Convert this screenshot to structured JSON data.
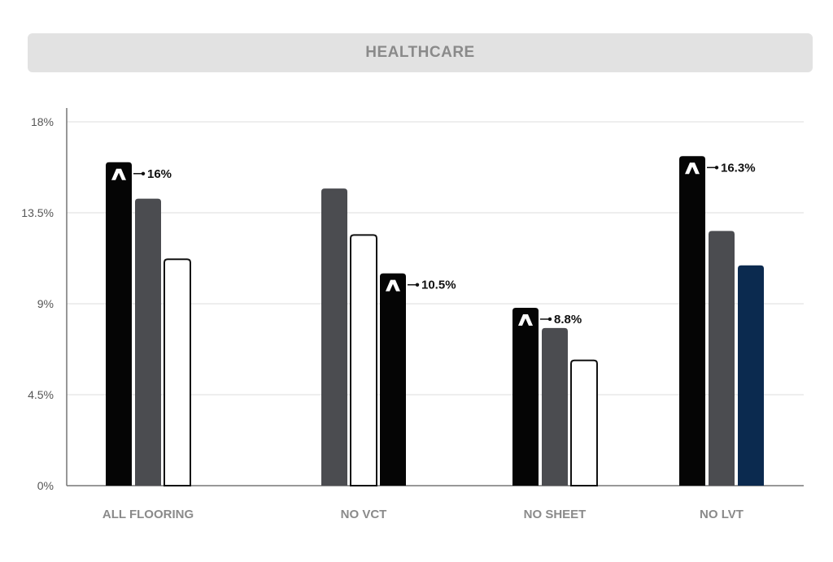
{
  "title": "HEALTHCARE",
  "colors": {
    "black": "#050505",
    "gray": "#4b4c50",
    "white": "#ffffff",
    "navy": "#0b2a4f",
    "title_bg": "#e2e2e2",
    "title_text": "#8a8a8a",
    "axis": "#777777",
    "grid": "#dcdcdc"
  },
  "chart_data": {
    "type": "bar",
    "title": "HEALTHCARE",
    "ylim": [
      0,
      18
    ],
    "yticks": [
      0,
      4.5,
      9,
      13.5,
      18
    ],
    "ytick_labels": [
      "0%",
      "4.5%",
      "9%",
      "13.5%",
      "18%"
    ],
    "grid": true,
    "categories": [
      "ALL FLOORING",
      "NO VCT",
      "NO SHEET",
      "NO LVT"
    ],
    "groups": [
      {
        "category": "ALL FLOORING",
        "bars": [
          {
            "value": 16,
            "color": "black",
            "highlight": true,
            "label": "16%"
          },
          {
            "value": 14.2,
            "color": "gray"
          },
          {
            "value": 11.2,
            "color": "white"
          }
        ]
      },
      {
        "category": "NO VCT",
        "bars": [
          {
            "value": 14.7,
            "color": "gray"
          },
          {
            "value": 12.4,
            "color": "white"
          },
          {
            "value": 10.5,
            "color": "black",
            "highlight": true,
            "label": "10.5%"
          }
        ]
      },
      {
        "category": "NO SHEET",
        "bars": [
          {
            "value": 8.8,
            "color": "black",
            "highlight": true,
            "label": "8.8%"
          },
          {
            "value": 7.8,
            "color": "gray"
          },
          {
            "value": 6.2,
            "color": "white"
          }
        ]
      },
      {
        "category": "NO LVT",
        "bars": [
          {
            "value": 16.3,
            "color": "black",
            "highlight": true,
            "label": "16.3%"
          },
          {
            "value": 12.6,
            "color": "gray"
          },
          {
            "value": 10.9,
            "color": "navy"
          }
        ]
      }
    ]
  }
}
